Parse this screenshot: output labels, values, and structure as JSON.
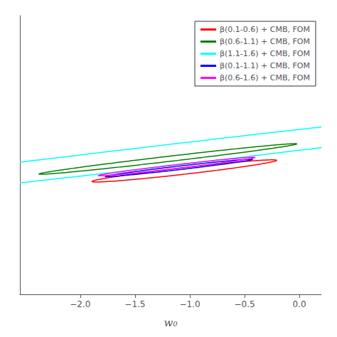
{
  "chart_data": {
    "type": "ellipse",
    "xlabel": "w₀",
    "xlim": [
      -2.55,
      0.2
    ],
    "ylim": [
      -6.5,
      7.5
    ],
    "xticks": [
      {
        "value": -2.0,
        "label": "−2.0"
      },
      {
        "value": -1.5,
        "label": "−1.5"
      },
      {
        "value": -1.0,
        "label": "−1.0"
      },
      {
        "value": -0.5,
        "label": "−0.5"
      },
      {
        "value": 0.0,
        "label": "0.0"
      }
    ],
    "yticks": [],
    "tick_labels": "x",
    "grid": false,
    "legend": "upper right",
    "series": [
      {
        "name": "β(0.1-0.6) + CMB, FOM",
        "color": "red",
        "center": [
          -1.05,
          -0.3
        ],
        "width": 0.28,
        "height": 2.0,
        "angle": -57
      },
      {
        "name": "β(0.6-1.1) + CMB, FOM",
        "color": "green",
        "center": [
          -1.2,
          0.3
        ],
        "width": 0.22,
        "height": 2.8,
        "angle": -57
      },
      {
        "name": "β(1.1-1.6) + CMB, FOM",
        "color": "cyan",
        "center": [
          -1.18,
          0.5
        ],
        "width": 0.9,
        "height": 13.5,
        "angle": -57
      },
      {
        "name": "β(0.1-1.1) + CMB, FOM",
        "color": "blue",
        "center": [
          -1.1,
          -0.15
        ],
        "width": 0.15,
        "height": 1.6,
        "angle": -57
      },
      {
        "name": "β(0.6-1.6) + CMB, FOM",
        "color": "magenta",
        "center": [
          -1.12,
          -0.08
        ],
        "width": 0.16,
        "height": 1.7,
        "angle": -57
      }
    ]
  }
}
